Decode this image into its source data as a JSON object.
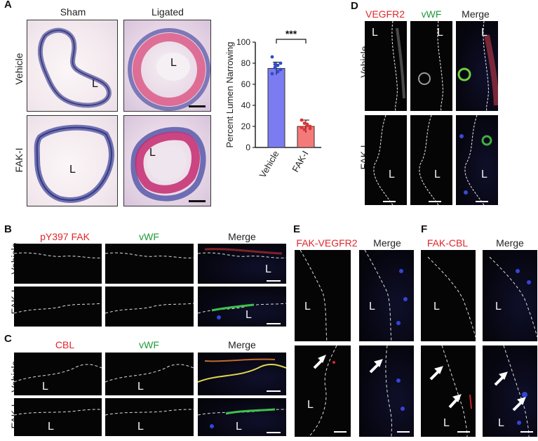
{
  "panel_letters": {
    "A": "A",
    "B": "B",
    "C": "C",
    "D": "D",
    "E": "E",
    "F": "F"
  },
  "panelA": {
    "col_sham": "Sham",
    "col_ligated": "Ligated",
    "row_vehicle": "Vehicle",
    "row_faki": "FAK-I",
    "lumen": "L"
  },
  "chart_data": {
    "type": "bar",
    "categories": [
      "Vehicle",
      "FAK-I"
    ],
    "values": [
      75,
      20
    ],
    "ylabel": "Percent Lumen Narrowing",
    "ylim": [
      0,
      100
    ],
    "yticks": [
      0,
      20,
      40,
      60,
      80,
      100
    ],
    "significance": "***",
    "points": {
      "Vehicle": [
        86,
        79,
        78,
        74,
        70,
        76,
        72,
        80
      ],
      "FAK-I": [
        26,
        23,
        22,
        20,
        19,
        17,
        21,
        18
      ]
    },
    "colors": {
      "Vehicle": "#7b7cf2",
      "FAK-I": "#f47a7a",
      "Vehicle_points": "#2f4cc6",
      "FAK-I_points": "#e23232"
    }
  },
  "panelB": {
    "col1": "pY397 FAK",
    "col2": "vWF",
    "col3": "Merge",
    "row1": "Vehicle",
    "row2": "FAK-I",
    "lumen": "L"
  },
  "panelC": {
    "col1": "CBL",
    "col2": "vWF",
    "col3": "Merge",
    "row1": "Vehicle",
    "row2": "FAK-I",
    "lumen": "L"
  },
  "panelD": {
    "col1": "VEGFR2",
    "col2": "vWF",
    "col3": "Merge",
    "row1": "Vehicle",
    "row2": "FAK-I",
    "lumen": "L"
  },
  "panelE": {
    "col1": "FAK-VEGFR2",
    "col2": "Merge",
    "lumen": "L"
  },
  "panelF": {
    "col1": "FAK-CBL",
    "col2": "Merge",
    "lumen": "L"
  },
  "colors": {
    "red_label": "#e0262a",
    "green_label": "#1f9a3a"
  }
}
